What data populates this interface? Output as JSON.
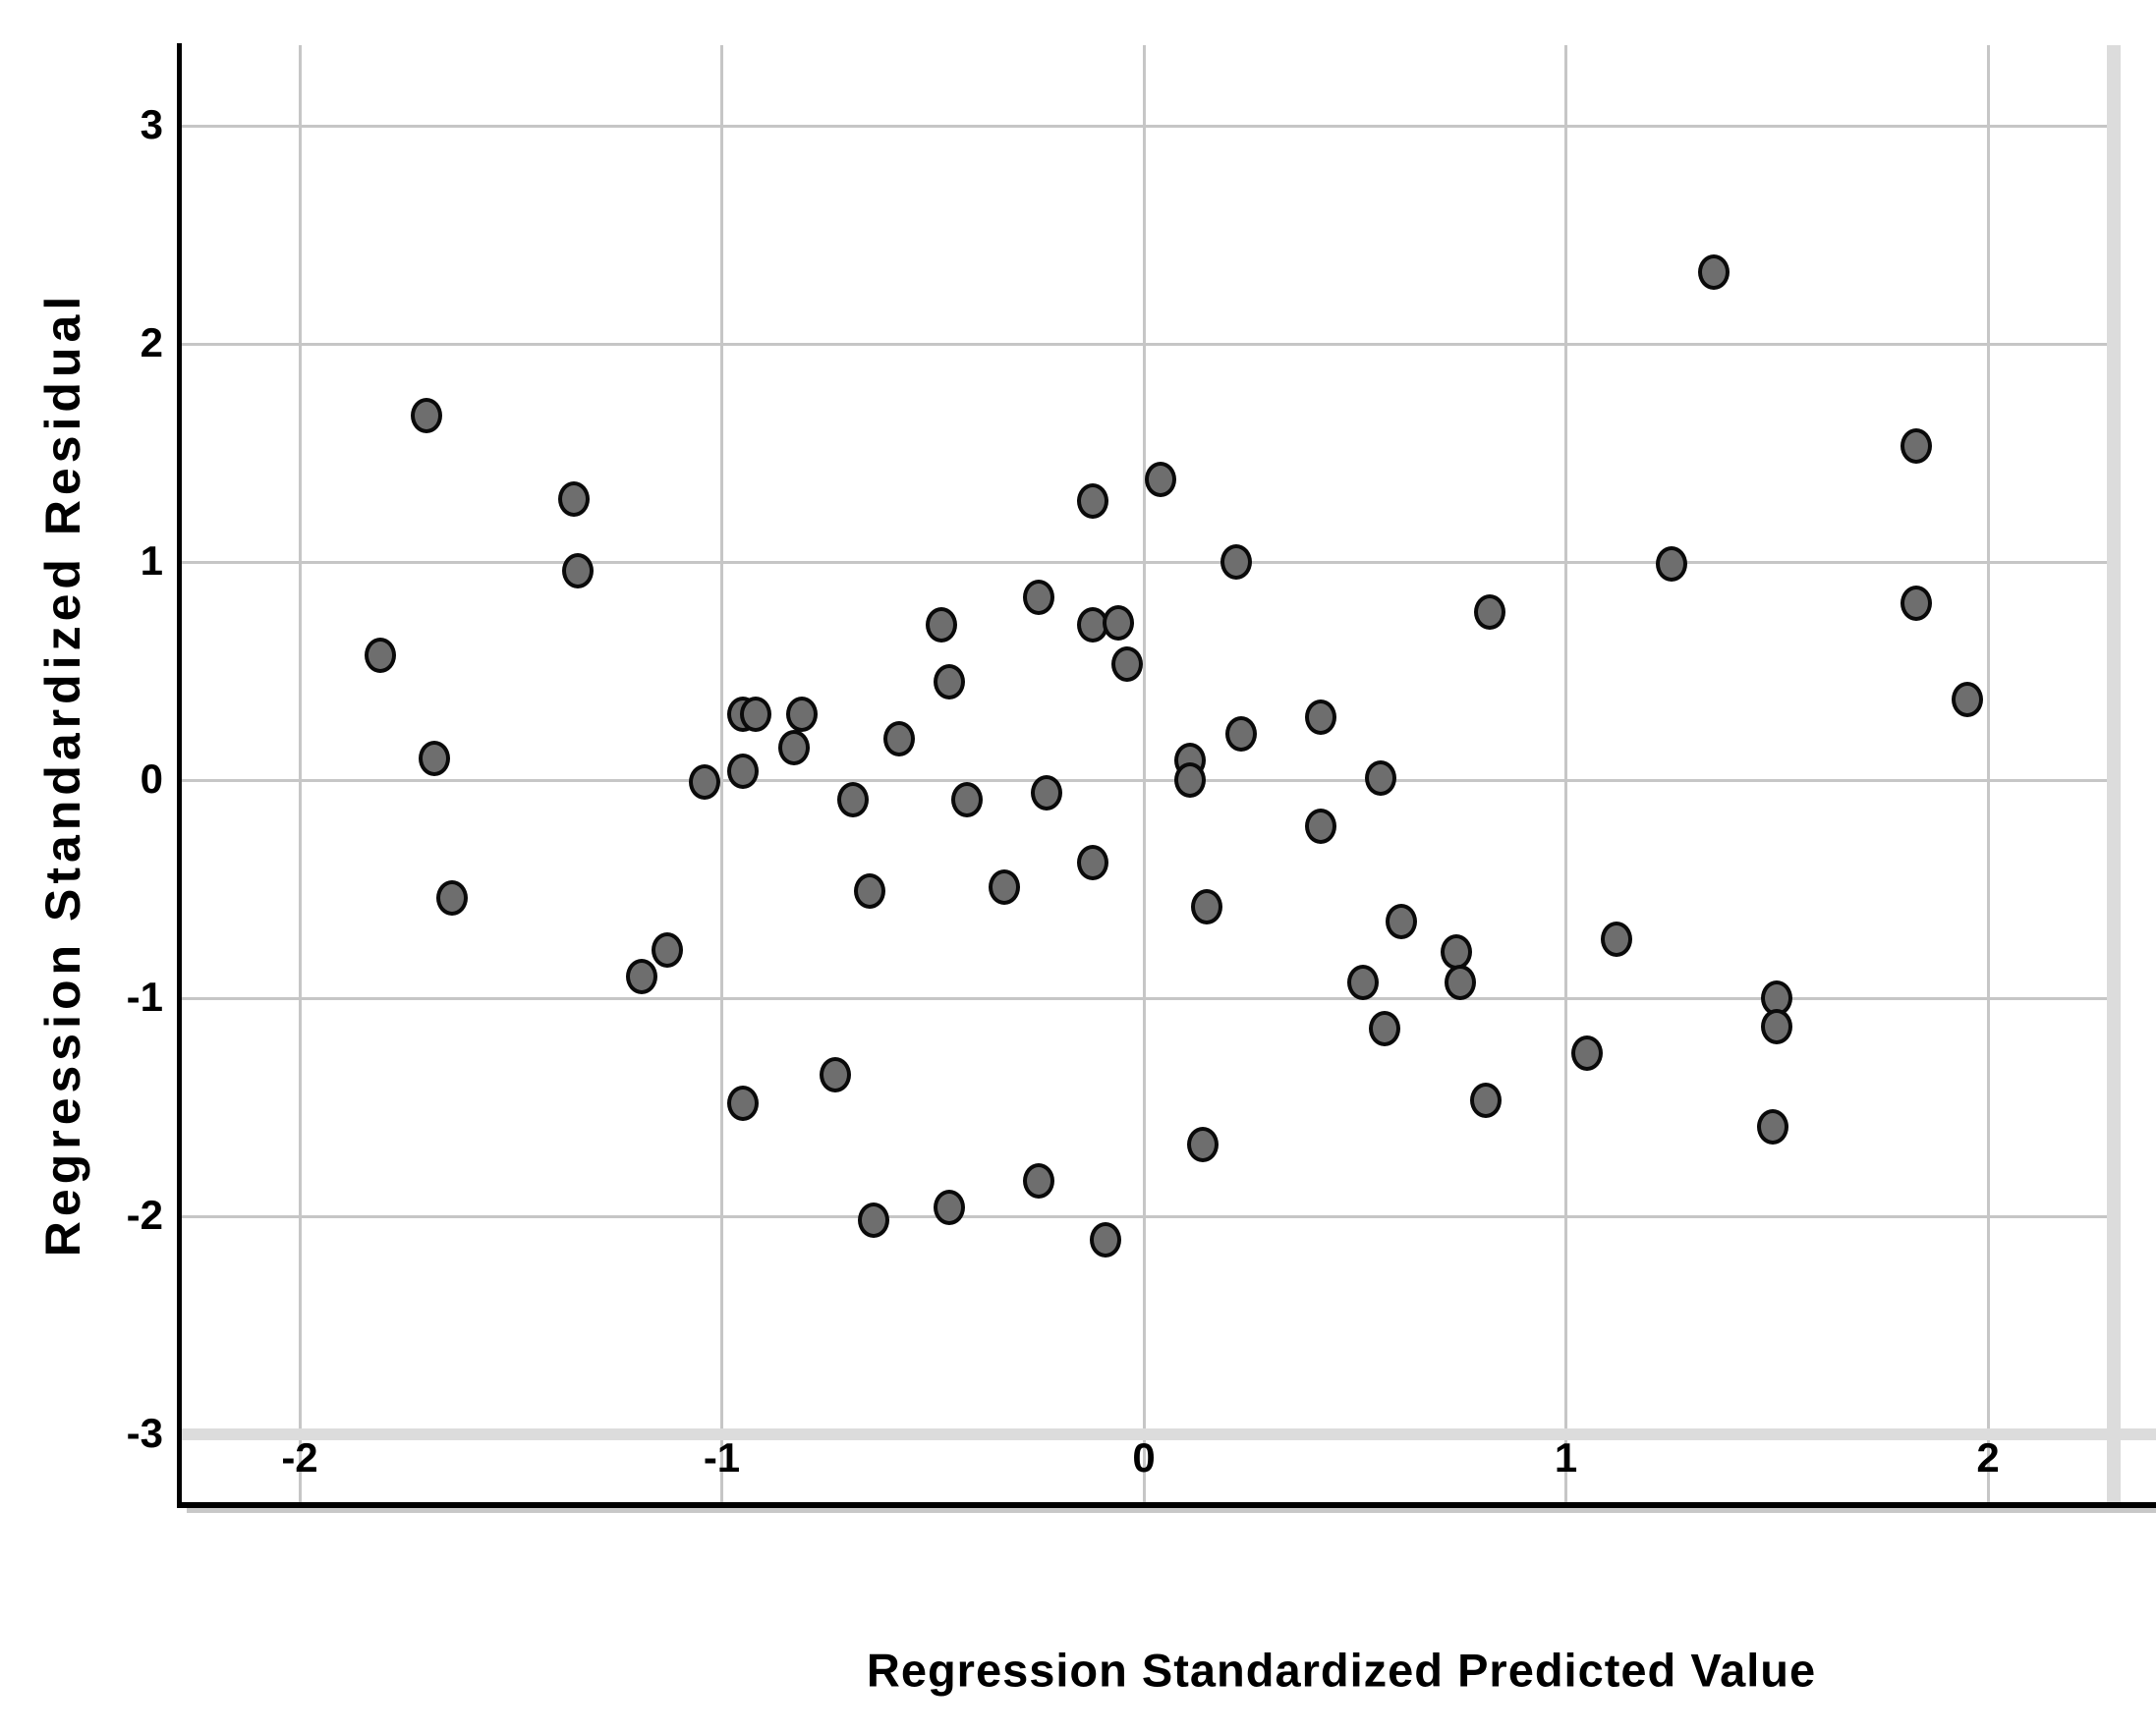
{
  "chart_data": {
    "type": "scatter",
    "title": "",
    "xlabel": "Regression Standardized Predicted Value",
    "ylabel": "Regression Standardized Residual",
    "xlim": [
      -2.28,
      2.3
    ],
    "ylim": [
      -3.33,
      3.36
    ],
    "x_ticks": [
      -2,
      -1,
      0,
      1,
      2
    ],
    "y_ticks": [
      3,
      2,
      1,
      0,
      -1,
      -2,
      -3
    ],
    "grid": true,
    "legend": false,
    "points": [
      [
        -1.81,
        0.57
      ],
      [
        -1.7,
        1.67
      ],
      [
        -1.68,
        0.1
      ],
      [
        -1.64,
        -0.54
      ],
      [
        -1.35,
        1.29
      ],
      [
        -1.34,
        0.96
      ],
      [
        -1.19,
        -0.9
      ],
      [
        -1.13,
        -0.78
      ],
      [
        -1.04,
        -0.01
      ],
      [
        -0.95,
        0.3
      ],
      [
        -0.92,
        0.3
      ],
      [
        -0.95,
        0.04
      ],
      [
        -0.95,
        -1.48
      ],
      [
        -0.83,
        0.15
      ],
      [
        -0.81,
        0.3
      ],
      [
        -0.73,
        -1.35
      ],
      [
        -0.69,
        -0.09
      ],
      [
        -0.65,
        -0.51
      ],
      [
        -0.64,
        -2.02
      ],
      [
        -0.58,
        0.19
      ],
      [
        -0.48,
        0.71
      ],
      [
        -0.46,
        0.45
      ],
      [
        -0.46,
        -1.96
      ],
      [
        -0.42,
        -0.09
      ],
      [
        -0.33,
        -0.49
      ],
      [
        -0.25,
        0.84
      ],
      [
        -0.25,
        -1.84
      ],
      [
        -0.23,
        -0.06
      ],
      [
        -0.12,
        1.28
      ],
      [
        -0.12,
        0.71
      ],
      [
        -0.12,
        -0.38
      ],
      [
        -0.09,
        -2.11
      ],
      [
        -0.06,
        0.72
      ],
      [
        -0.04,
        0.53
      ],
      [
        0.04,
        1.38
      ],
      [
        0.11,
        0.09
      ],
      [
        0.11,
        0.0
      ],
      [
        0.14,
        -1.67
      ],
      [
        0.15,
        -0.58
      ],
      [
        0.22,
        1.0
      ],
      [
        0.23,
        0.21
      ],
      [
        0.42,
        0.29
      ],
      [
        0.42,
        -0.21
      ],
      [
        0.52,
        -0.93
      ],
      [
        0.56,
        0.01
      ],
      [
        0.57,
        -1.14
      ],
      [
        0.61,
        -0.65
      ],
      [
        0.74,
        -0.79
      ],
      [
        0.75,
        -0.93
      ],
      [
        0.81,
        -1.47
      ],
      [
        0.82,
        0.77
      ],
      [
        1.05,
        -1.25
      ],
      [
        1.12,
        -0.73
      ],
      [
        1.25,
        0.99
      ],
      [
        1.35,
        2.33
      ],
      [
        1.49,
        -1.59
      ],
      [
        1.5,
        -1.0
      ],
      [
        1.5,
        -1.13
      ],
      [
        1.83,
        1.53
      ],
      [
        1.83,
        0.81
      ],
      [
        1.95,
        0.37
      ]
    ]
  },
  "style": {
    "marker_fill": "#6e6e6e",
    "marker_stroke": "#0a0a0a",
    "grid_color": "#c6c6c6",
    "band_color": "#dcdcdc",
    "axis_color": "#000000",
    "background": "#ffffff"
  }
}
